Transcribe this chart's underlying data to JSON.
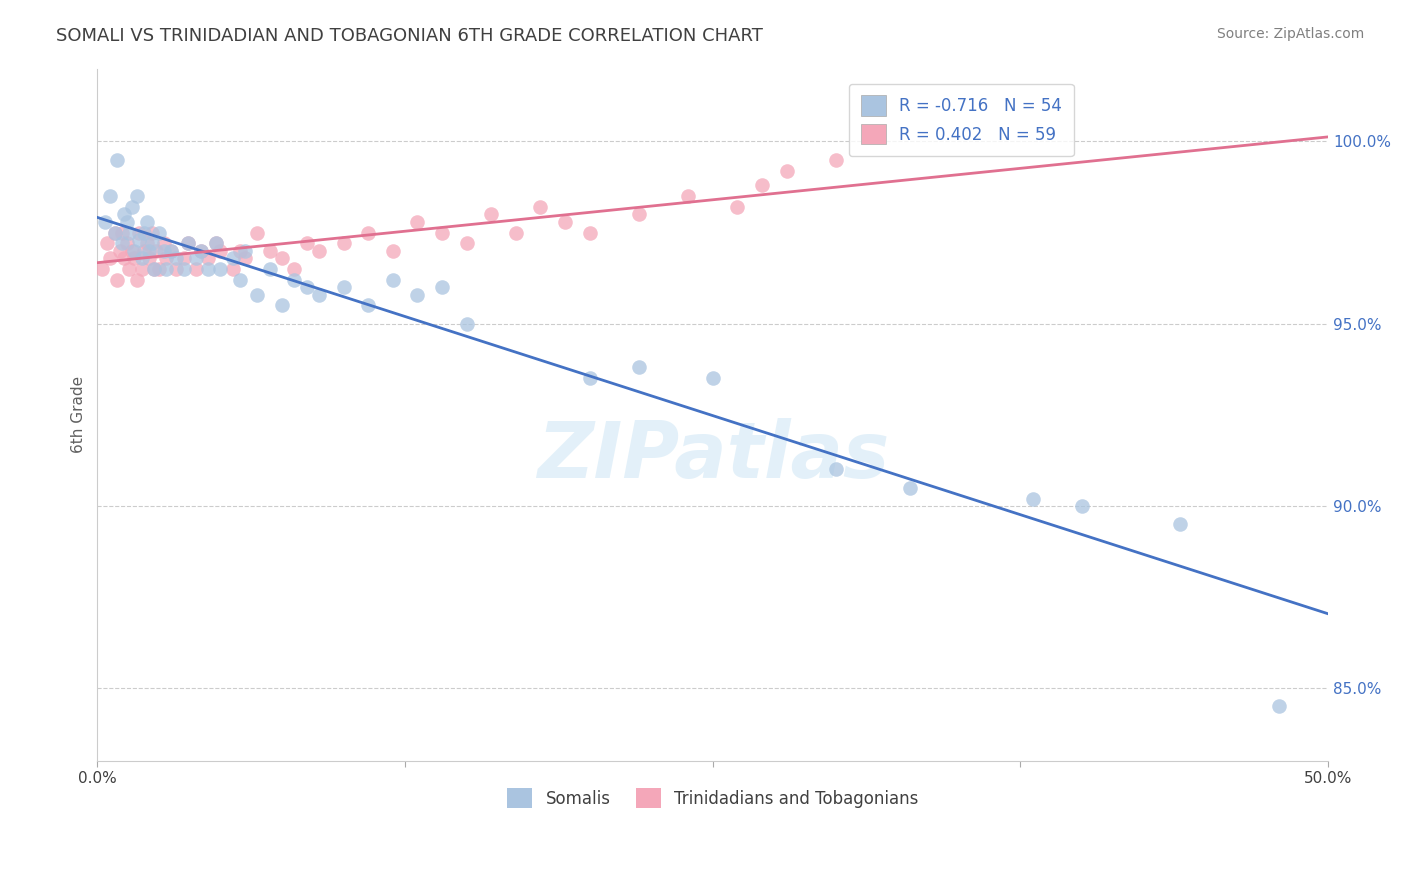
{
  "title": "SOMALI VS TRINIDADIAN AND TOBAGONIAN 6TH GRADE CORRELATION CHART",
  "source": "Source: ZipAtlas.com",
  "ylabel": "6th Grade",
  "xlim": [
    0.0,
    50.0
  ],
  "ylim": [
    83.0,
    102.0
  ],
  "yticks": [
    85.0,
    90.0,
    95.0,
    100.0
  ],
  "ytick_labels": [
    "85.0%",
    "90.0%",
    "95.0%",
    "100.0%"
  ],
  "xtick_positions": [
    0.0,
    12.5,
    25.0,
    37.5,
    50.0
  ],
  "xtick_labels": [
    "0.0%",
    "",
    "",
    "",
    "50.0%"
  ],
  "somali_R": -0.716,
  "somali_N": 54,
  "trini_R": 0.402,
  "trini_N": 59,
  "somali_color": "#aac4e0",
  "trini_color": "#f4a7b9",
  "somali_line_color": "#4472c4",
  "trini_line_color": "#e07090",
  "background_color": "#ffffff",
  "grid_color": "#cccccc",
  "title_color": "#404040",
  "label_color": "#4472c4",
  "watermark": "ZIPatlas",
  "somali_x": [
    0.3,
    0.5,
    0.7,
    0.8,
    1.0,
    1.1,
    1.2,
    1.3,
    1.4,
    1.5,
    1.6,
    1.7,
    1.8,
    1.9,
    2.0,
    2.1,
    2.2,
    2.3,
    2.5,
    2.7,
    2.8,
    3.0,
    3.2,
    3.5,
    3.7,
    4.0,
    4.2,
    4.5,
    4.8,
    5.0,
    5.5,
    5.8,
    6.0,
    6.5,
    7.0,
    7.5,
    8.0,
    8.5,
    9.0,
    10.0,
    11.0,
    12.0,
    13.0,
    14.0,
    15.0,
    20.0,
    22.0,
    25.0,
    30.0,
    33.0,
    38.0,
    40.0,
    44.0,
    48.0
  ],
  "somali_y": [
    97.8,
    98.5,
    97.5,
    99.5,
    97.2,
    98.0,
    97.8,
    97.5,
    98.2,
    97.0,
    98.5,
    97.3,
    96.8,
    97.5,
    97.8,
    97.0,
    97.2,
    96.5,
    97.5,
    97.0,
    96.5,
    97.0,
    96.8,
    96.5,
    97.2,
    96.8,
    97.0,
    96.5,
    97.2,
    96.5,
    96.8,
    96.2,
    97.0,
    95.8,
    96.5,
    95.5,
    96.2,
    96.0,
    95.8,
    96.0,
    95.5,
    96.2,
    95.8,
    96.0,
    95.0,
    93.5,
    93.8,
    93.5,
    91.0,
    90.5,
    90.2,
    90.0,
    89.5,
    84.5
  ],
  "trini_x": [
    0.2,
    0.4,
    0.5,
    0.7,
    0.8,
    0.9,
    1.0,
    1.1,
    1.2,
    1.3,
    1.4,
    1.5,
    1.6,
    1.7,
    1.8,
    1.9,
    2.0,
    2.1,
    2.2,
    2.3,
    2.4,
    2.5,
    2.7,
    2.8,
    3.0,
    3.2,
    3.5,
    3.7,
    4.0,
    4.2,
    4.5,
    4.8,
    5.0,
    5.5,
    5.8,
    6.0,
    6.5,
    7.0,
    7.5,
    8.0,
    8.5,
    9.0,
    10.0,
    11.0,
    12.0,
    13.0,
    14.0,
    15.0,
    16.0,
    17.0,
    18.0,
    19.0,
    20.0,
    22.0,
    24.0,
    26.0,
    27.0,
    28.0,
    30.0
  ],
  "trini_y": [
    96.5,
    97.2,
    96.8,
    97.5,
    96.2,
    97.0,
    97.5,
    96.8,
    97.2,
    96.5,
    97.0,
    96.8,
    96.2,
    97.5,
    96.5,
    97.0,
    97.2,
    96.8,
    97.5,
    96.5,
    97.0,
    96.5,
    97.2,
    96.8,
    97.0,
    96.5,
    96.8,
    97.2,
    96.5,
    97.0,
    96.8,
    97.2,
    97.0,
    96.5,
    97.0,
    96.8,
    97.5,
    97.0,
    96.8,
    96.5,
    97.2,
    97.0,
    97.2,
    97.5,
    97.0,
    97.8,
    97.5,
    97.2,
    98.0,
    97.5,
    98.2,
    97.8,
    97.5,
    98.0,
    98.5,
    98.2,
    98.8,
    99.2,
    99.5
  ]
}
